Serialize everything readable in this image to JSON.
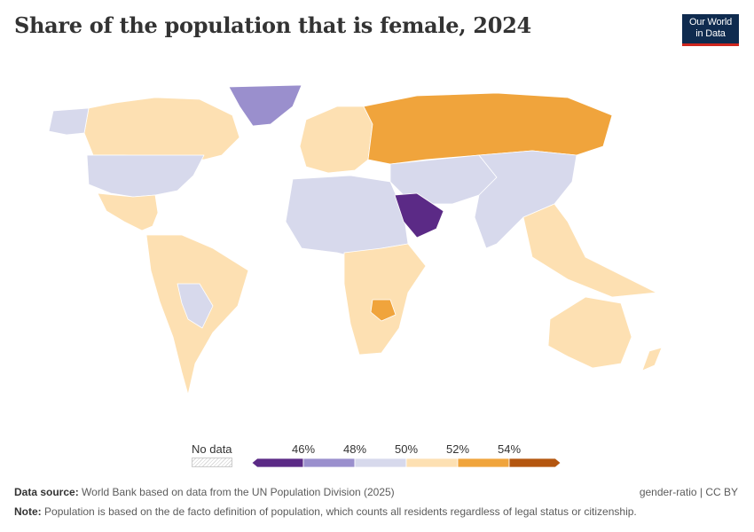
{
  "title": "Share of the population that is female, 2024",
  "logo": {
    "line1": "Our World",
    "line2": "in Data"
  },
  "legend": {
    "no_data_label": "No data",
    "tick_labels": [
      "46%",
      "48%",
      "50%",
      "52%",
      "54%"
    ],
    "bins": [
      {
        "range": "< 46%",
        "color": "#5b2a86"
      },
      {
        "range": "46–48%",
        "color": "#9a8fcd"
      },
      {
        "range": "48–50%",
        "color": "#d7d9ec"
      },
      {
        "range": "50–52%",
        "color": "#fde0b2"
      },
      {
        "range": "52–54%",
        "color": "#f0a43c"
      },
      {
        "range": "> 54%",
        "color": "#b4560f"
      }
    ]
  },
  "regions": [
    {
      "name": "North America",
      "category": "50–52%"
    },
    {
      "name": "United States",
      "category": "48–50%"
    },
    {
      "name": "Alaska",
      "category": "48–50%"
    },
    {
      "name": "Greenland",
      "category": "46–48%"
    },
    {
      "name": "Mexico & Central America",
      "category": "50–52%"
    },
    {
      "name": "South America",
      "category": "50–52%"
    },
    {
      "name": "Bolivia/Paraguay",
      "category": "48–50%"
    },
    {
      "name": "Europe",
      "category": "50–52%"
    },
    {
      "name": "Russia",
      "category": "52–54%"
    },
    {
      "name": "Africa (west & central)",
      "category": "48–50%"
    },
    {
      "name": "Africa (south & east)",
      "category": "50–52%"
    },
    {
      "name": "Zimbabwe",
      "category": "52–54%"
    },
    {
      "name": "Arabian Peninsula",
      "category": "< 46%"
    },
    {
      "name": "Middle East & Central Asia",
      "category": "48–50%"
    },
    {
      "name": "China & South Asia",
      "category": "48–50%"
    },
    {
      "name": "Southeast Asia",
      "category": "50–52%"
    },
    {
      "name": "Australia",
      "category": "50–52%"
    },
    {
      "name": "New Zealand",
      "category": "50–52%"
    }
  ],
  "footer": {
    "source_label": "Data source:",
    "source_text": "World Bank based on data from the UN Population Division (2025)",
    "license": "gender-ratio | CC BY",
    "note_label": "Note:",
    "note_text": "Population is based on the de facto definition of population, which counts all residents regardless of legal status or citizenship."
  }
}
